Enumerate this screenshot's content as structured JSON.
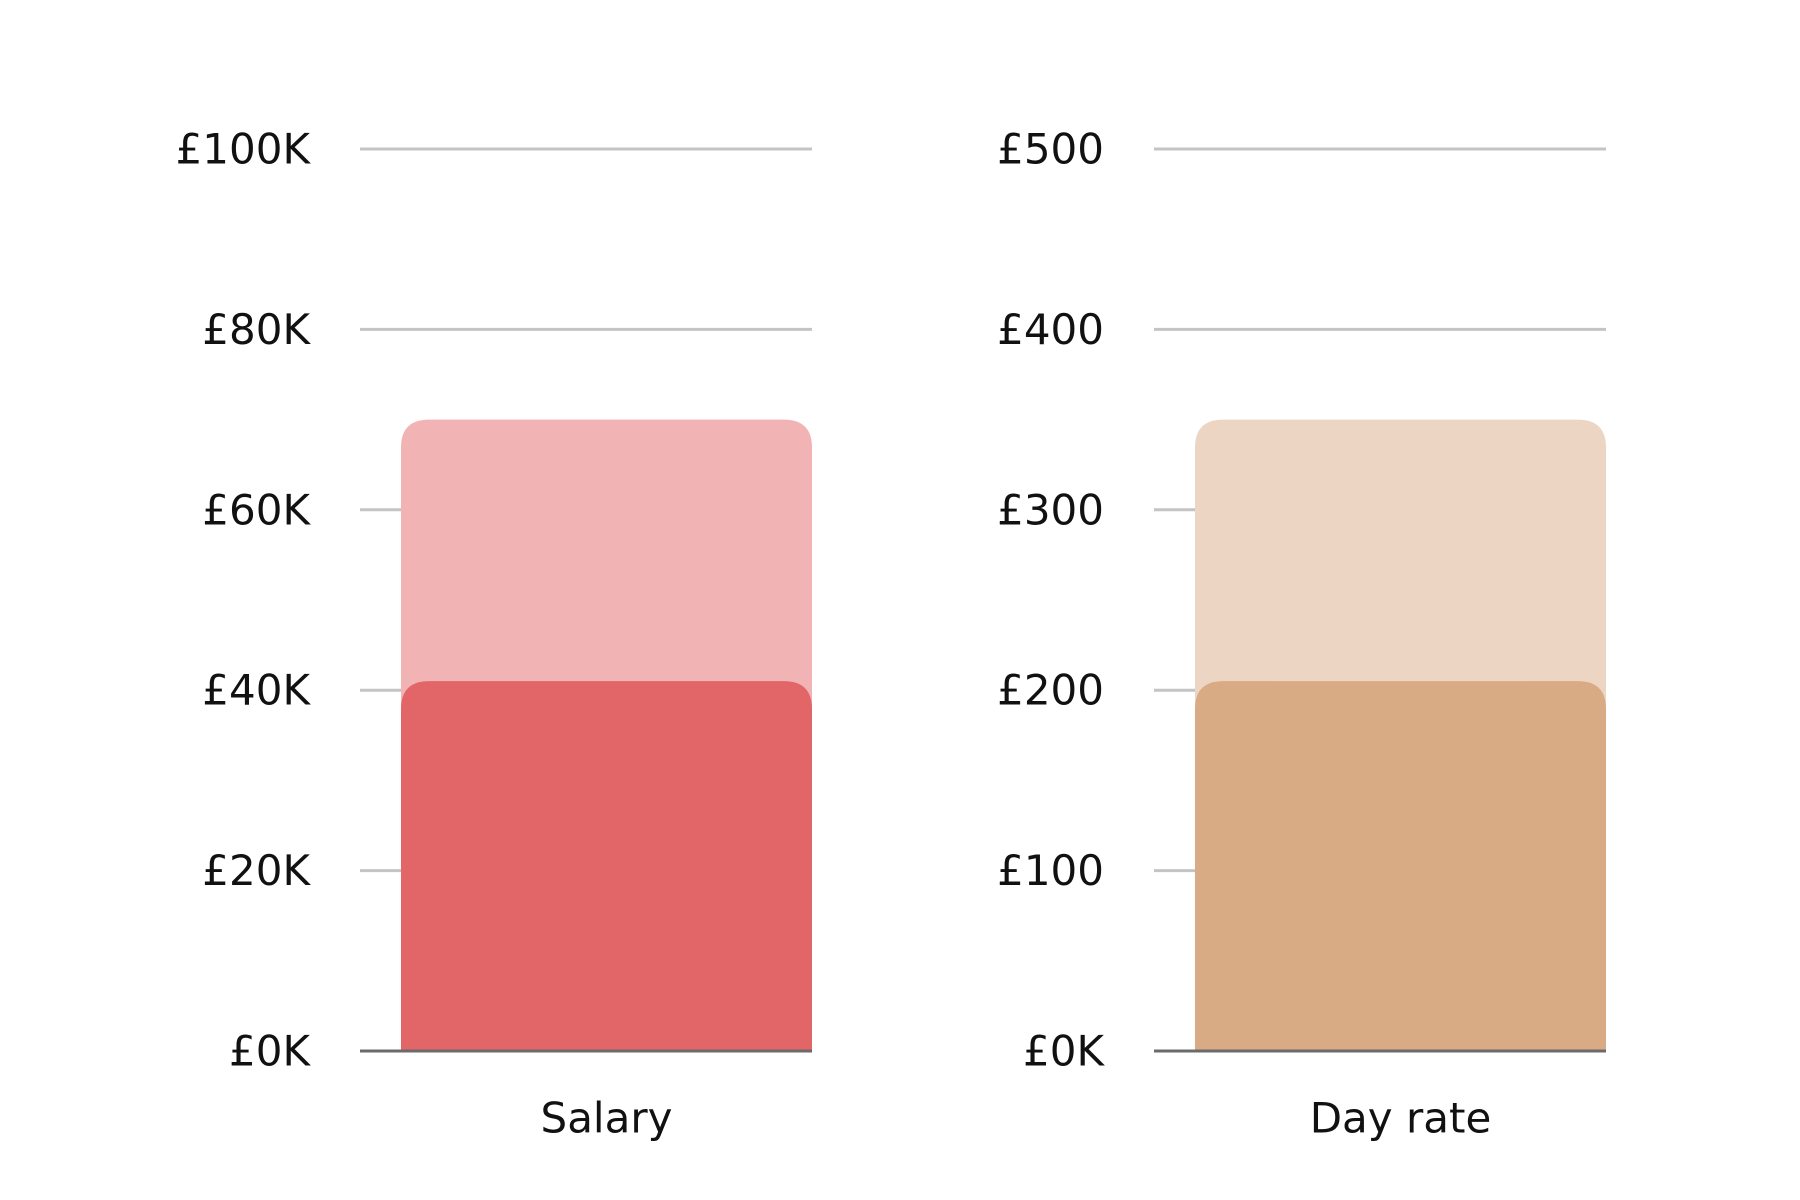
{
  "chart_data": [
    {
      "type": "bar",
      "title": "",
      "xlabel": "",
      "ylabel": "",
      "categories": [
        "Salary"
      ],
      "ylim": [
        0,
        100000
      ],
      "yticks": [
        0,
        20000,
        40000,
        60000,
        80000,
        100000
      ],
      "ytick_labels": [
        "£0K",
        "£20K",
        "£40K",
        "£60K",
        "£80K",
        "£100K"
      ],
      "grid": true,
      "layered": true,
      "series": [
        {
          "values": [
            70000
          ],
          "color": "#F2B3B5"
        },
        {
          "values": [
            41000
          ],
          "color": "#E26567"
        }
      ]
    },
    {
      "type": "bar",
      "title": "",
      "xlabel": "",
      "ylabel": "",
      "categories": [
        "Day rate"
      ],
      "ylim": [
        0,
        500
      ],
      "yticks": [
        0,
        100,
        200,
        300,
        400,
        500
      ],
      "ytick_labels": [
        "£0K",
        "£100",
        "£200",
        "£300",
        "£400",
        "£500"
      ],
      "grid": true,
      "layered": true,
      "series": [
        {
          "values": [
            350
          ],
          "color": "#EDD5C3"
        },
        {
          "values": [
            205
          ],
          "color": "#D8AB85"
        }
      ]
    }
  ],
  "colors": {
    "gridline": "#C4C4C4",
    "baseline": "#6B6B6B",
    "text": "#111111"
  }
}
